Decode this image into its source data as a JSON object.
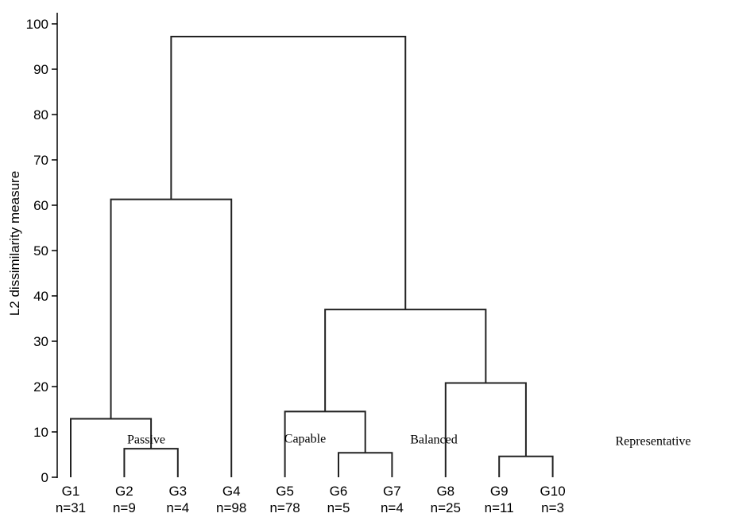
{
  "chart_data": {
    "type": "dendrogram",
    "ylabel": "L2 dissimilarity measure",
    "ylim": [
      0,
      100
    ],
    "yticks": [
      0,
      10,
      20,
      30,
      40,
      50,
      60,
      70,
      80,
      90,
      100
    ],
    "leaves": [
      {
        "id": "G1",
        "n": "n=31"
      },
      {
        "id": "G2",
        "n": "n=9"
      },
      {
        "id": "G3",
        "n": "n=4"
      },
      {
        "id": "G4",
        "n": "n=98"
      },
      {
        "id": "G5",
        "n": "n=78"
      },
      {
        "id": "G6",
        "n": "n=5"
      },
      {
        "id": "G7",
        "n": "n=4"
      },
      {
        "id": "G8",
        "n": "n=25"
      },
      {
        "id": "G9",
        "n": "n=11"
      },
      {
        "id": "G10",
        "n": "n=3"
      }
    ],
    "merges": [
      {
        "left": "G2",
        "right": "G3",
        "height": 6.3
      },
      {
        "left": "G1",
        "right": "(G2,G3)",
        "height": 12.9
      },
      {
        "left": "(G1,G2,G3)",
        "right": "G4",
        "height": 61.3
      },
      {
        "left": "G6",
        "right": "G7",
        "height": 5.4
      },
      {
        "left": "G5",
        "right": "(G6,G7)",
        "height": 14.5
      },
      {
        "left": "G9",
        "right": "G10",
        "height": 4.6
      },
      {
        "left": "G8",
        "right": "(G9,G10)",
        "height": 20.8
      },
      {
        "left": "(G5,G6,G7)",
        "right": "(G8,G9,G10)",
        "height": 37.0
      },
      {
        "left": "(G1,G2,G3,G4)",
        "right": "(G5..G10)",
        "height": 97.2
      }
    ],
    "annotations": [
      {
        "text": "Passive",
        "y": 8.3
      },
      {
        "text": "Capable",
        "y": 8.5
      },
      {
        "text": "Balanced",
        "y": 8.3
      },
      {
        "text": "Representative",
        "y": 8.0
      }
    ]
  }
}
